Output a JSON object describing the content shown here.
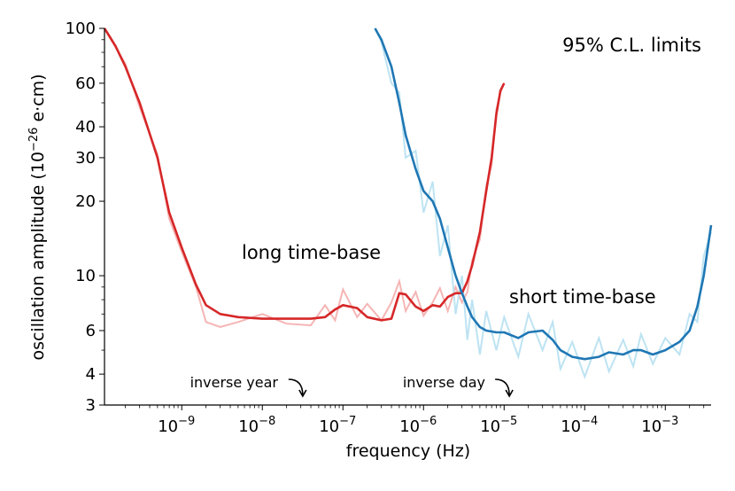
{
  "chart_data": {
    "type": "line",
    "title": "95% C.L. limits",
    "xlabel": "frequency (Hz)",
    "ylabel": "oscillation amplitude (10−26 e·cm)",
    "x_scale": "log",
    "y_scale": "log",
    "xlim": [
      1.1e-10,
      0.0037
    ],
    "ylim": [
      3,
      100
    ],
    "x_ticks": [
      {
        "value": 1e-09,
        "base": "10",
        "exp": "−9"
      },
      {
        "value": 1e-08,
        "base": "10",
        "exp": "−8"
      },
      {
        "value": 1e-07,
        "base": "10",
        "exp": "−7"
      },
      {
        "value": 1e-06,
        "base": "10",
        "exp": "−6"
      },
      {
        "value": 1e-05,
        "base": "10",
        "exp": "−5"
      },
      {
        "value": 0.0001,
        "base": "10",
        "exp": "−4"
      },
      {
        "value": 0.001,
        "base": "10",
        "exp": "−3"
      }
    ],
    "y_ticks": [
      {
        "value": 3,
        "label": "3"
      },
      {
        "value": 4,
        "label": "4"
      },
      {
        "value": 6,
        "label": "6"
      },
      {
        "value": 10,
        "label": "10"
      },
      {
        "value": 20,
        "label": "20"
      },
      {
        "value": 30,
        "label": "30"
      },
      {
        "value": 40,
        "label": "40"
      },
      {
        "value": 60,
        "label": "60"
      },
      {
        "value": 100,
        "label": "100"
      }
    ],
    "ylabel_parts": {
      "pre": "oscillation amplitude (10",
      "exp": "−26",
      "post": " e·cm)"
    },
    "series": [
      {
        "name": "long time-base",
        "color": "#d62728",
        "raw_color": "#f5b5b4",
        "x": [
          1.1e-10,
          1.5e-10,
          2e-10,
          3e-10,
          5e-10,
          7e-10,
          1e-09,
          1.5e-09,
          2e-09,
          3e-09,
          5e-09,
          1e-08,
          2e-08,
          4e-08,
          6e-08,
          8e-08,
          1e-07,
          1.5e-07,
          2e-07,
          3e-07,
          4e-07,
          5e-07,
          6e-07,
          8e-07,
          1e-06,
          1.3e-06,
          1.6e-06,
          2e-06,
          2.5e-06,
          3e-06,
          3.5e-06,
          4e-06,
          5e-06,
          6e-06,
          7e-06,
          8e-06,
          9e-06,
          1e-05
        ],
        "values": [
          100,
          85,
          70,
          50,
          30,
          18,
          13,
          9.2,
          7.6,
          7.0,
          6.8,
          6.7,
          6.7,
          6.7,
          6.8,
          7.3,
          7.6,
          7.4,
          6.8,
          6.6,
          6.7,
          8.5,
          8.4,
          7.5,
          7.2,
          7.6,
          7.5,
          8.2,
          8.5,
          8.5,
          9.5,
          11,
          15,
          22,
          30,
          45,
          56,
          60
        ],
        "raw": [
          100,
          84,
          72,
          48,
          31,
          17,
          12.5,
          9.0,
          6.5,
          6.2,
          6.5,
          7.0,
          6.4,
          6.3,
          7.6,
          6.6,
          8.8,
          6.8,
          7.7,
          6.6,
          7.8,
          9.5,
          7.2,
          8.6,
          6.9,
          7.8,
          8.9,
          7.2,
          9.0,
          7.8,
          8.6,
          11.5,
          14,
          23,
          28,
          47,
          55,
          60
        ],
        "raw_x": [
          1.1e-10,
          1.5e-10,
          2e-10,
          3e-10,
          5e-10,
          7e-10,
          1e-09,
          1.5e-09,
          2e-09,
          3e-09,
          5e-09,
          1e-08,
          2e-08,
          4e-08,
          6e-08,
          8e-08,
          1e-07,
          1.5e-07,
          2e-07,
          3e-07,
          4e-07,
          5e-07,
          6e-07,
          8e-07,
          1e-06,
          1.3e-06,
          1.6e-06,
          2e-06,
          2.5e-06,
          3e-06,
          3.5e-06,
          4e-06,
          5e-06,
          6e-06,
          7e-06,
          8e-06,
          9e-06,
          1e-05
        ]
      },
      {
        "name": "short time-base",
        "color": "#1f77b4",
        "raw_color": "#bde3f2",
        "x": [
          2.5e-07,
          3e-07,
          4e-07,
          5e-07,
          6e-07,
          8e-07,
          1e-06,
          1.3e-06,
          1.6e-06,
          2e-06,
          2.5e-06,
          3e-06,
          3.5e-06,
          4e-06,
          5e-06,
          6e-06,
          8e-06,
          1e-05,
          1.5e-05,
          2e-05,
          3e-05,
          4e-05,
          5e-05,
          7e-05,
          0.0001,
          0.00015,
          0.0002,
          0.0003,
          0.0004,
          0.0005,
          0.0007,
          0.001,
          0.0015,
          0.002,
          0.0025,
          0.003,
          0.0037
        ],
        "values": [
          100,
          90,
          70,
          50,
          37,
          27,
          22,
          20,
          17,
          13,
          10,
          8.5,
          7.5,
          6.8,
          6.2,
          6.0,
          5.9,
          5.9,
          5.6,
          5.9,
          6.0,
          5.5,
          5.0,
          4.7,
          4.6,
          4.7,
          4.9,
          4.8,
          5.0,
          5.0,
          4.8,
          5.0,
          5.4,
          6.0,
          7.5,
          10,
          16
        ],
        "raw": [
          100,
          88,
          60,
          55,
          30,
          32,
          18,
          24,
          12,
          16,
          7,
          10,
          5.5,
          8.0,
          4.8,
          7.2,
          5.0,
          6.8,
          4.7,
          7.0,
          5.0,
          6.5,
          4.2,
          5.4,
          3.9,
          5.6,
          4.1,
          5.5,
          4.3,
          5.8,
          4.4,
          5.6,
          4.8,
          7.0,
          6.5,
          12,
          15
        ],
        "raw_x": [
          2.5e-07,
          3e-07,
          4e-07,
          5e-07,
          6e-07,
          8e-07,
          1e-06,
          1.3e-06,
          1.6e-06,
          2e-06,
          2.5e-06,
          3e-06,
          3.5e-06,
          4e-06,
          5e-06,
          6e-06,
          8e-06,
          1e-05,
          1.5e-05,
          2e-05,
          3e-05,
          4e-05,
          5e-05,
          7e-05,
          0.0001,
          0.00015,
          0.0002,
          0.0003,
          0.0004,
          0.0005,
          0.0007,
          0.001,
          0.0015,
          0.002,
          0.0025,
          0.003,
          0.0037
        ]
      }
    ],
    "annotations": {
      "title": "95% C.L. limits",
      "long_label": "long time-base",
      "short_label": "short time-base",
      "inverse_year": {
        "text": "inverse year",
        "x": 3.17e-08
      },
      "inverse_day": {
        "text": "inverse day",
        "x": 1.16e-05
      }
    }
  }
}
